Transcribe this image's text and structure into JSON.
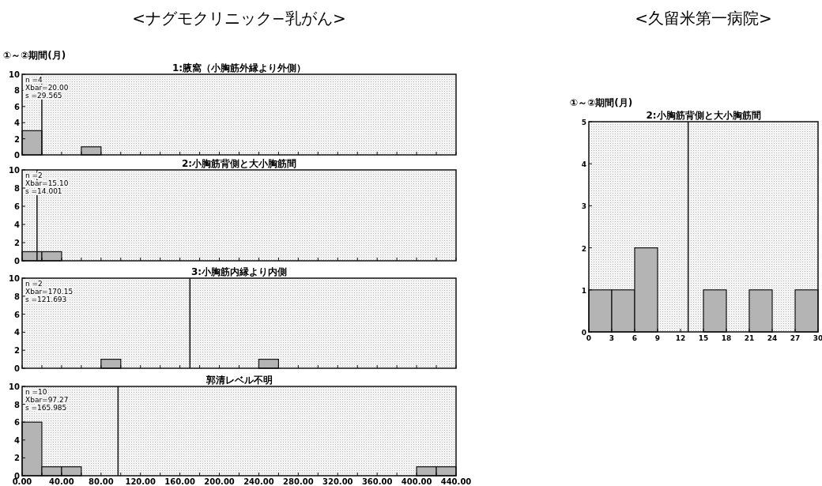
{
  "chart_data": [
    {
      "type": "histogram",
      "title": "1:腋窩（小胸筋外縁より外側）",
      "annotations": [
        "<ナグモクリニック−乳がん>",
        "①～②期間(月)",
        "n   =4",
        "Xbar=20.00",
        "s   =29.565"
      ],
      "bins": [
        0,
        20,
        40,
        60,
        80,
        100,
        120,
        140,
        160,
        180,
        200,
        220,
        240,
        260,
        280,
        300,
        320,
        340,
        360,
        380,
        400,
        420,
        440
      ],
      "values": [
        3,
        0,
        0,
        1,
        0,
        0,
        0,
        0,
        0,
        0,
        0,
        0,
        0,
        0,
        0,
        0,
        0,
        0,
        0,
        0,
        0,
        0
      ],
      "color": "#b4b4b4",
      "xlim": [
        0,
        440
      ],
      "ylim": [
        0,
        10
      ],
      "yticks": [
        0,
        2,
        4,
        6,
        8,
        10
      ],
      "xticks": [
        {
          "value": 0,
          "label": null
        },
        {
          "value": 20,
          "label": null
        },
        {
          "value": 40,
          "label": null
        },
        {
          "value": 60,
          "label": null
        },
        {
          "value": 80,
          "label": null
        },
        {
          "value": 100,
          "label": null
        },
        {
          "value": 120,
          "label": null
        },
        {
          "value": 140,
          "label": null
        },
        {
          "value": 160,
          "label": null
        },
        {
          "value": 180,
          "label": null
        },
        {
          "value": 200,
          "label": null
        },
        {
          "value": 220,
          "label": null
        },
        {
          "value": 240,
          "label": null
        },
        {
          "value": 260,
          "label": null
        },
        {
          "value": 280,
          "label": null
        },
        {
          "value": 300,
          "label": null
        },
        {
          "value": 320,
          "label": null
        },
        {
          "value": 340,
          "label": null
        },
        {
          "value": 360,
          "label": null
        },
        {
          "value": 380,
          "label": null
        },
        {
          "value": 400,
          "label": null
        },
        {
          "value": 420,
          "label": null
        },
        {
          "value": 440,
          "label": null
        }
      ],
      "tick_labels": "y",
      "ref_lines": [
        {
          "axis": "x",
          "value": 20
        }
      ]
    },
    {
      "type": "histogram",
      "title": "2:小胸筋背側と大小胸筋間",
      "annotations": [
        "n   =2",
        "Xbar=15.10",
        "s   =14.001"
      ],
      "bins": [
        0,
        20,
        40,
        60,
        80,
        100,
        120,
        140,
        160,
        180,
        200,
        220,
        240,
        260,
        280,
        300,
        320,
        340,
        360,
        380,
        400,
        420,
        440
      ],
      "values": [
        1,
        1,
        0,
        0,
        0,
        0,
        0,
        0,
        0,
        0,
        0,
        0,
        0,
        0,
        0,
        0,
        0,
        0,
        0,
        0,
        0,
        0
      ],
      "color": "#b4b4b4",
      "xlim": [
        0,
        440
      ],
      "ylim": [
        0,
        10
      ],
      "yticks": [
        0,
        2,
        4,
        6,
        8,
        10
      ],
      "xticks": [
        {
          "value": 0,
          "label": null
        },
        {
          "value": 20,
          "label": null
        },
        {
          "value": 40,
          "label": null
        },
        {
          "value": 60,
          "label": null
        },
        {
          "value": 80,
          "label": null
        },
        {
          "value": 100,
          "label": null
        },
        {
          "value": 120,
          "label": null
        },
        {
          "value": 140,
          "label": null
        },
        {
          "value": 160,
          "label": null
        },
        {
          "value": 180,
          "label": null
        },
        {
          "value": 200,
          "label": null
        },
        {
          "value": 220,
          "label": null
        },
        {
          "value": 240,
          "label": null
        },
        {
          "value": 260,
          "label": null
        },
        {
          "value": 280,
          "label": null
        },
        {
          "value": 300,
          "label": null
        },
        {
          "value": 320,
          "label": null
        },
        {
          "value": 340,
          "label": null
        },
        {
          "value": 360,
          "label": null
        },
        {
          "value": 380,
          "label": null
        },
        {
          "value": 400,
          "label": null
        },
        {
          "value": 420,
          "label": null
        },
        {
          "value": 440,
          "label": null
        }
      ],
      "tick_labels": "y",
      "ref_lines": [
        {
          "axis": "x",
          "value": 15.1
        }
      ]
    },
    {
      "type": "histogram",
      "title": "3:小胸筋内縁より内側",
      "annotations": [
        "n   =2",
        "Xbar=170.15",
        "s   =121.693"
      ],
      "bins": [
        0,
        20,
        40,
        60,
        80,
        100,
        120,
        140,
        160,
        180,
        200,
        220,
        240,
        260,
        280,
        300,
        320,
        340,
        360,
        380,
        400,
        420,
        440
      ],
      "values": [
        0,
        0,
        0,
        0,
        1,
        0,
        0,
        0,
        0,
        0,
        0,
        0,
        1,
        0,
        0,
        0,
        0,
        0,
        0,
        0,
        0,
        0
      ],
      "color": "#b4b4b4",
      "xlim": [
        0,
        440
      ],
      "ylim": [
        0,
        10
      ],
      "yticks": [
        0,
        2,
        4,
        6,
        8,
        10
      ],
      "xticks": [
        {
          "value": 0,
          "label": null
        },
        {
          "value": 20,
          "label": null
        },
        {
          "value": 40,
          "label": null
        },
        {
          "value": 60,
          "label": null
        },
        {
          "value": 80,
          "label": null
        },
        {
          "value": 100,
          "label": null
        },
        {
          "value": 120,
          "label": null
        },
        {
          "value": 140,
          "label": null
        },
        {
          "value": 160,
          "label": null
        },
        {
          "value": 180,
          "label": null
        },
        {
          "value": 200,
          "label": null
        },
        {
          "value": 220,
          "label": null
        },
        {
          "value": 240,
          "label": null
        },
        {
          "value": 260,
          "label": null
        },
        {
          "value": 280,
          "label": null
        },
        {
          "value": 300,
          "label": null
        },
        {
          "value": 320,
          "label": null
        },
        {
          "value": 340,
          "label": null
        },
        {
          "value": 360,
          "label": null
        },
        {
          "value": 380,
          "label": null
        },
        {
          "value": 400,
          "label": null
        },
        {
          "value": 420,
          "label": null
        },
        {
          "value": 440,
          "label": null
        }
      ],
      "tick_labels": "y",
      "ref_lines": [
        {
          "axis": "x",
          "value": 170.15
        }
      ]
    },
    {
      "type": "histogram",
      "title": "郭清レベル不明",
      "annotations": [
        "n   =10",
        "Xbar=97.27",
        "s   =165.985"
      ],
      "bins": [
        0,
        20,
        40,
        60,
        80,
        100,
        120,
        140,
        160,
        180,
        200,
        220,
        240,
        260,
        280,
        300,
        320,
        340,
        360,
        380,
        400,
        420,
        440
      ],
      "values": [
        6,
        1,
        1,
        0,
        0,
        0,
        0,
        0,
        0,
        0,
        0,
        0,
        0,
        0,
        0,
        0,
        0,
        0,
        0,
        0,
        1,
        1
      ],
      "color": "#b4b4b4",
      "xlim": [
        0,
        440
      ],
      "ylim": [
        0,
        10
      ],
      "yticks": [
        0,
        2,
        4,
        6,
        8,
        10
      ],
      "xticks": [
        {
          "value": 0,
          "label": "0.00"
        },
        {
          "value": 20,
          "label": null
        },
        {
          "value": 40,
          "label": "40.00"
        },
        {
          "value": 60,
          "label": null
        },
        {
          "value": 80,
          "label": "80.00"
        },
        {
          "value": 100,
          "label": null
        },
        {
          "value": 120,
          "label": "120.00"
        },
        {
          "value": 140,
          "label": null
        },
        {
          "value": 160,
          "label": "160.00"
        },
        {
          "value": 180,
          "label": null
        },
        {
          "value": 200,
          "label": "200.00"
        },
        {
          "value": 220,
          "label": null
        },
        {
          "value": 240,
          "label": "240.00"
        },
        {
          "value": 260,
          "label": null
        },
        {
          "value": 280,
          "label": "280.00"
        },
        {
          "value": 300,
          "label": null
        },
        {
          "value": 320,
          "label": "320.00"
        },
        {
          "value": 340,
          "label": null
        },
        {
          "value": 360,
          "label": "360.00"
        },
        {
          "value": 380,
          "label": null
        },
        {
          "value": 400,
          "label": "400.00"
        },
        {
          "value": 420,
          "label": null
        },
        {
          "value": 440,
          "label": "440.00"
        }
      ],
      "ref_lines": [
        {
          "axis": "x",
          "value": 97.27
        }
      ]
    },
    {
      "type": "histogram",
      "title": "2:小胸筋背側と大小胸筋間",
      "annotations": [
        "<久留米第一病院>",
        "①～②期間(月)"
      ],
      "bins": [
        0,
        3,
        6,
        9,
        12,
        15,
        18,
        21,
        24,
        27,
        30
      ],
      "values": [
        1,
        1,
        2,
        0,
        0,
        1,
        0,
        1,
        0,
        1
      ],
      "color": "#b4b4b4",
      "xlim": [
        0,
        30
      ],
      "ylim": [
        0,
        5
      ],
      "yticks": [
        0,
        1,
        2,
        3,
        4,
        5
      ],
      "xticks": [
        0,
        3,
        6,
        9,
        12,
        15,
        18,
        21,
        24,
        27,
        30
      ],
      "ref_lines": [
        {
          "axis": "x",
          "value": 13
        }
      ]
    }
  ]
}
